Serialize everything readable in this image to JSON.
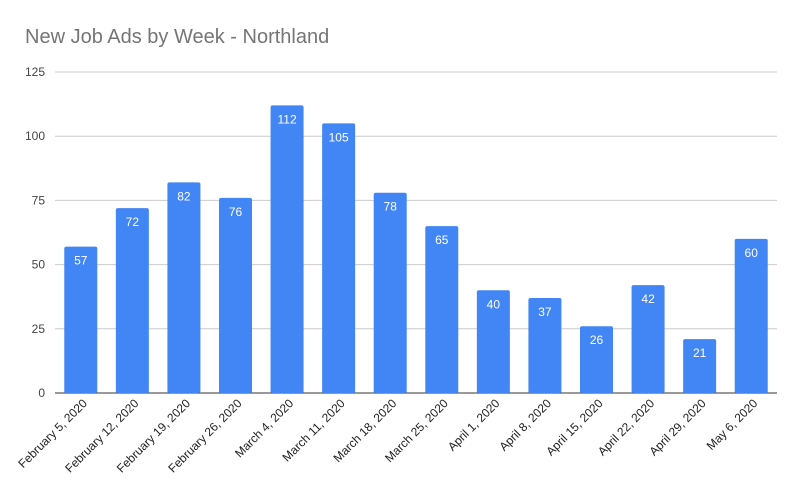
{
  "chart_data": {
    "type": "bar",
    "title": "New Job Ads by Week - Northland",
    "xlabel": "",
    "ylabel": "",
    "ylim": [
      0,
      125
    ],
    "yticks": [
      0,
      25,
      50,
      75,
      100,
      125
    ],
    "grid": true,
    "legend": "none",
    "bar_color": "#4285f4",
    "categories": [
      "February 5, 2020",
      "February 12, 2020",
      "February 19, 2020",
      "February 26, 2020",
      "March 4, 2020",
      "March 11, 2020",
      "March 18, 2020",
      "March 25, 2020",
      "April 1, 2020",
      "April 8, 2020",
      "April 15, 2020",
      "April 22, 2020",
      "April 29, 2020",
      "May 6, 2020"
    ],
    "values": [
      57,
      72,
      82,
      76,
      112,
      105,
      78,
      65,
      40,
      37,
      26,
      42,
      21,
      60
    ],
    "data_labels": true
  }
}
